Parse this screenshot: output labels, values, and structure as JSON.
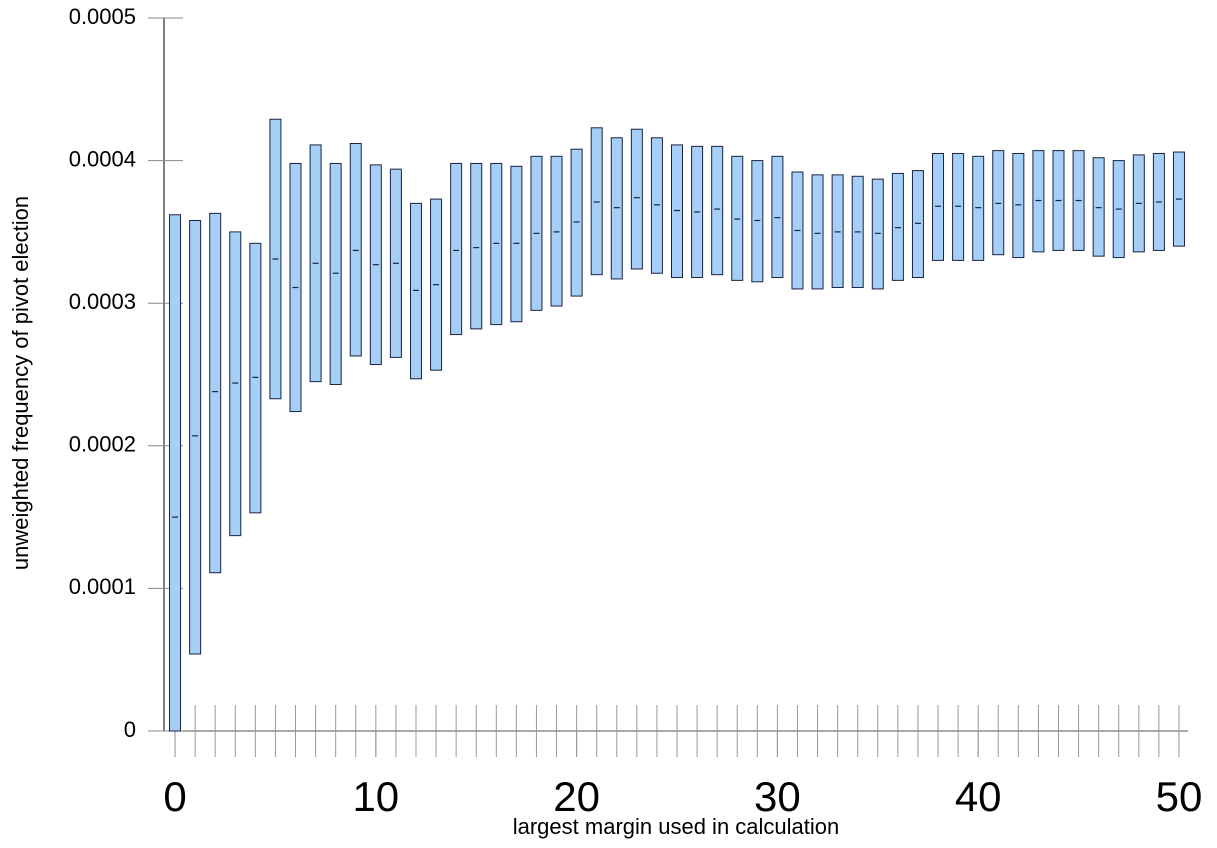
{
  "chart_data": {
    "type": "range-bar",
    "xlabel": "largest margin used in calculation",
    "ylabel": "unweighted frequency of pivot election",
    "x": [
      0,
      1,
      2,
      3,
      4,
      5,
      6,
      7,
      8,
      9,
      10,
      11,
      12,
      13,
      14,
      15,
      16,
      17,
      18,
      19,
      20,
      21,
      22,
      23,
      24,
      25,
      26,
      27,
      28,
      29,
      30,
      31,
      32,
      33,
      34,
      35,
      36,
      37,
      38,
      39,
      40,
      41,
      42,
      43,
      44,
      45,
      46,
      47,
      48,
      49,
      50
    ],
    "high": [
      0.000362,
      0.000358,
      0.000363,
      0.00035,
      0.000342,
      0.000429,
      0.000398,
      0.000411,
      0.000398,
      0.000412,
      0.000397,
      0.000394,
      0.00037,
      0.000373,
      0.000398,
      0.000398,
      0.000398,
      0.000396,
      0.000403,
      0.000403,
      0.000408,
      0.000423,
      0.000416,
      0.000422,
      0.000416,
      0.000411,
      0.00041,
      0.00041,
      0.000403,
      0.0004,
      0.000403,
      0.000392,
      0.00039,
      0.00039,
      0.000389,
      0.000387,
      0.000391,
      0.000393,
      0.000405,
      0.000405,
      0.000403,
      0.000407,
      0.000405,
      0.000407,
      0.000407,
      0.000407,
      0.000402,
      0.0004,
      0.000404,
      0.000405,
      0.000406
    ],
    "low": [
      0,
      5.4e-05,
      0.000111,
      0.000137,
      0.000153,
      0.000233,
      0.000224,
      0.000245,
      0.000243,
      0.000263,
      0.000257,
      0.000262,
      0.000247,
      0.000253,
      0.000278,
      0.000282,
      0.000285,
      0.000287,
      0.000295,
      0.000298,
      0.000305,
      0.00032,
      0.000317,
      0.000324,
      0.000321,
      0.000318,
      0.000318,
      0.00032,
      0.000316,
      0.000315,
      0.000318,
      0.00031,
      0.00031,
      0.000311,
      0.000311,
      0.00031,
      0.000316,
      0.000318,
      0.00033,
      0.00033,
      0.00033,
      0.000334,
      0.000332,
      0.000336,
      0.000337,
      0.000337,
      0.000333,
      0.000332,
      0.000336,
      0.000337,
      0.00034
    ],
    "mid": [
      0.00015,
      0.000207,
      0.000238,
      0.000244,
      0.000248,
      0.000331,
      0.000311,
      0.000328,
      0.000321,
      0.000337,
      0.000327,
      0.000328,
      0.000309,
      0.000313,
      0.000337,
      0.000339,
      0.000342,
      0.000342,
      0.000349,
      0.00035,
      0.000357,
      0.000371,
      0.000367,
      0.000374,
      0.000369,
      0.000365,
      0.000364,
      0.000366,
      0.000359,
      0.000358,
      0.00036,
      0.000351,
      0.000349,
      0.00035,
      0.00035,
      0.000349,
      0.000353,
      0.000356,
      0.000368,
      0.000368,
      0.000367,
      0.00037,
      0.000369,
      0.000372,
      0.000372,
      0.000372,
      0.000367,
      0.000366,
      0.00037,
      0.000371,
      0.000373
    ],
    "color": "#a6cff8",
    "edge_color": "#1a2340",
    "xlim": [
      -0.55,
      50.45
    ],
    "xticks": [
      0,
      10,
      20,
      30,
      40,
      50
    ],
    "ylim": [
      0,
      0.0005
    ],
    "yticks": [
      0,
      0.0001,
      0.0002,
      0.0003,
      0.0004,
      0.0005
    ]
  }
}
